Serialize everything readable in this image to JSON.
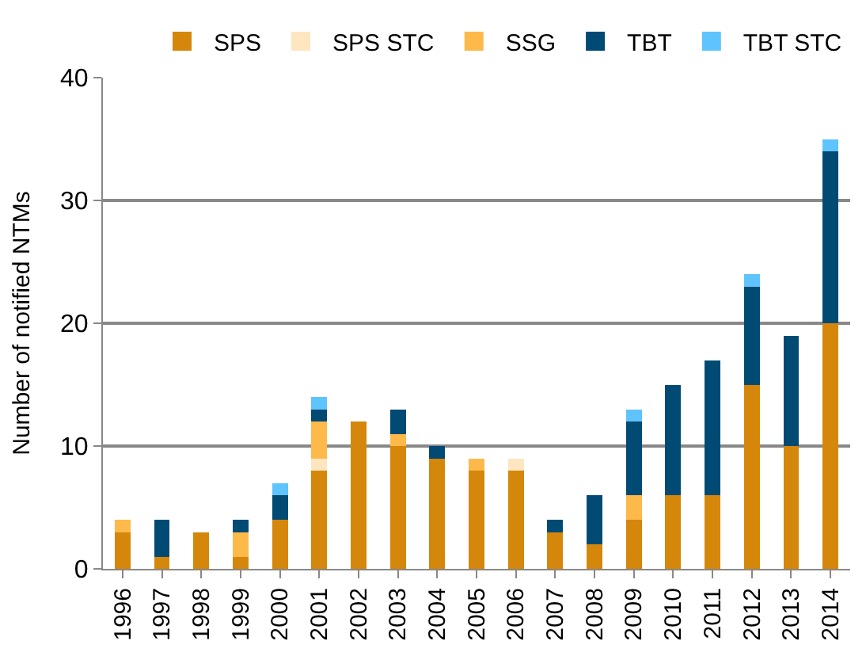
{
  "chart_data": {
    "type": "bar",
    "stacked": true,
    "ylabel": "Number of notified NTMs",
    "categories": [
      "1996",
      "1997",
      "1998",
      "1999",
      "2000",
      "2001",
      "2002",
      "2003",
      "2004",
      "2005",
      "2006",
      "2007",
      "2008",
      "2009",
      "2010",
      "2011",
      "2012",
      "2013",
      "2014"
    ],
    "series": [
      {
        "name": "SPS",
        "color": "#d4870a",
        "values": [
          3,
          1,
          3,
          1,
          4,
          8,
          12,
          10,
          9,
          8,
          8,
          3,
          2,
          4,
          6,
          6,
          15,
          10,
          20
        ]
      },
      {
        "name": "SPS STC",
        "color": "#fde6c0",
        "values": [
          0,
          0,
          0,
          0,
          0,
          1,
          0,
          0,
          0,
          0,
          1,
          0,
          0,
          0,
          0,
          0,
          0,
          0,
          0
        ]
      },
      {
        "name": "SSG",
        "color": "#fdb94a",
        "values": [
          1,
          0,
          0,
          2,
          0,
          3,
          0,
          1,
          0,
          1,
          0,
          0,
          0,
          2,
          0,
          0,
          0,
          0,
          0
        ]
      },
      {
        "name": "TBT",
        "color": "#004a74",
        "values": [
          0,
          3,
          0,
          1,
          2,
          1,
          0,
          2,
          1,
          0,
          0,
          1,
          4,
          6,
          9,
          11,
          8,
          9,
          14
        ]
      },
      {
        "name": "TBT STC",
        "color": "#5fc4fd",
        "values": [
          0,
          0,
          0,
          0,
          1,
          1,
          0,
          0,
          0,
          0,
          0,
          0,
          0,
          1,
          0,
          0,
          1,
          0,
          1
        ]
      }
    ],
    "ylim": [
      0,
      40
    ],
    "yticks": [
      0,
      10,
      20,
      30,
      40
    ],
    "grid": "y",
    "legend": "top"
  }
}
